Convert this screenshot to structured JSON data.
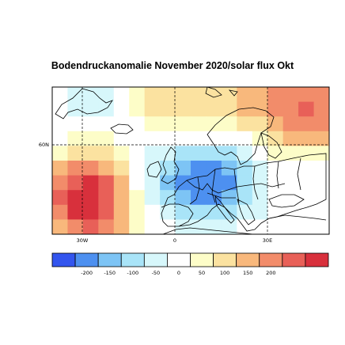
{
  "title": "Bodendruckanomalie November 2020/solar flux Okt",
  "map": {
    "lon_labels": [
      "30W",
      "0",
      "30E"
    ],
    "lat_labels": [
      "60N"
    ],
    "projection": "lat-lon grid, North Atlantic / Europe"
  },
  "legend": {
    "tick_labels": [
      "-200",
      "-150",
      "-100",
      "-50",
      "0",
      "50",
      "100",
      "150",
      "200"
    ],
    "colors": [
      "#3355ee",
      "#4d90f0",
      "#7dc4f5",
      "#a9e4f8",
      "#d7f7fb",
      "#ffffff",
      "#fdfdc8",
      "#fbe2a0",
      "#f8b87c",
      "#f28c6a",
      "#e86058",
      "#d8303c"
    ]
  },
  "field_palette": {
    "neg4": "#4d90f0",
    "neg3": "#7dc4f5",
    "neg2": "#a9e4f8",
    "neg1": "#d7f7fb",
    "zero": "#ffffff",
    "pos1": "#fdfdc8",
    "pos2": "#fbe2a0",
    "pos3": "#f8b87c",
    "pos4": "#f28c6a",
    "pos5": "#e86058",
    "pos6": "#d8303c"
  }
}
